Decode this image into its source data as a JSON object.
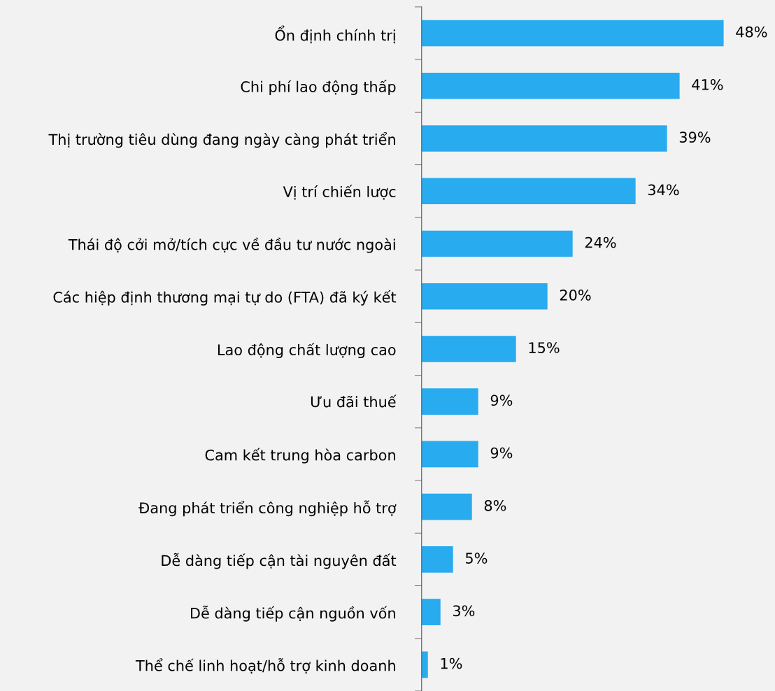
{
  "chart_data": {
    "type": "bar",
    "orientation": "horizontal",
    "categories": [
      "Ổn định chính trị",
      "Chi phí lao động thấp",
      "Thị trường tiêu dùng đang ngày càng phát triển",
      "Vị trí chiến lược",
      "Thái độ cởi mở/tích cực về đầu tư nước ngoài",
      "Các hiệp định thương mại tự do (FTA) đã ký kết",
      "Lao động chất lượng cao",
      "Ưu đãi thuế",
      "Cam kết trung hòa carbon",
      "Đang phát triển công nghiệp hỗ trợ",
      "Dễ dàng tiếp cận tài nguyên đất",
      "Dễ dàng tiếp cận nguồn vốn",
      "Thể chế linh hoạt/hỗ trợ kinh doanh"
    ],
    "values": [
      48,
      41,
      39,
      34,
      24,
      20,
      15,
      9,
      9,
      8,
      5,
      3,
      1
    ],
    "value_labels": [
      "48%",
      "41%",
      "39%",
      "34%",
      "24%",
      "20%",
      "15%",
      "9%",
      "9%",
      "8%",
      "5%",
      "3%",
      "1%"
    ],
    "color": "#29abef",
    "grid": false,
    "legend": false
  }
}
